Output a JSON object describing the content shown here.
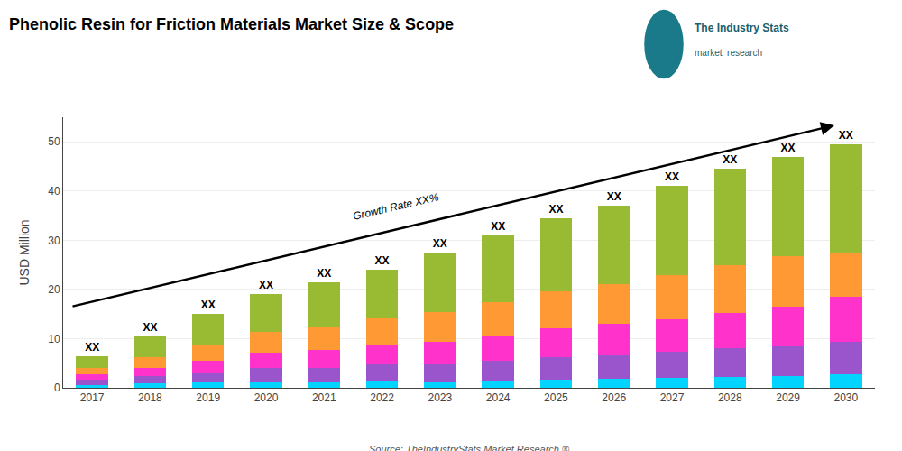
{
  "chart_data": {
    "type": "bar",
    "stacked": true,
    "title": "Phenolic Resin for Friction Materials Market Size & Scope",
    "ylabel": "USD Million",
    "categories": [
      "2017",
      "2018",
      "2019",
      "2020",
      "2021",
      "2022",
      "2023",
      "2024",
      "2025",
      "2026",
      "2027",
      "2028",
      "2029",
      "2030"
    ],
    "series": [
      {
        "color": "#00D4FF",
        "values": [
          0.585,
          0.945,
          1.05,
          1.33,
          1.29,
          1.44,
          1.375,
          1.55,
          1.725,
          1.85,
          2.05,
          2.225,
          2.35,
          2.7775
        ]
      },
      {
        "color": "#9B55CC",
        "values": [
          0.975,
          1.365,
          1.8,
          2.66,
          2.795,
          3.36,
          3.575,
          4.03,
          4.485,
          4.81,
          5.33,
          5.785,
          6.11,
          6.565
        ]
      },
      {
        "color": "#FF33CC",
        "values": [
          1.17,
          1.68,
          2.7,
          3.23,
          3.655,
          4.08,
          4.4,
          4.96,
          5.865,
          6.29,
          6.56,
          7.12,
          7.99,
          9.09
        ]
      },
      {
        "color": "#FF9933",
        "values": [
          1.3,
          2.31,
          3.3,
          4.18,
          4.73,
          5.28,
          6.05,
          6.82,
          7.59,
          8.14,
          9.02,
          9.79,
          10.34,
          8.8375
        ]
      },
      {
        "color": "#99BB33",
        "values": [
          2.47,
          4.2,
          6.15,
          7.6,
          9.03,
          9.84,
          12.1,
          13.64,
          14.835,
          15.91,
          18.04,
          19.58,
          20.21,
          22.22
        ]
      }
    ],
    "bar_labels": [
      "XX",
      "XX",
      "XX",
      "XX",
      "XX",
      "XX",
      "XX",
      "XX",
      "XX",
      "XX",
      "XX",
      "XX",
      "XX",
      "XX"
    ],
    "annotations": [
      "Source: TheIndustryStats Market Research ®",
      "Growth Rate XX%",
      "The Industry Stats",
      "market  research"
    ],
    "ylim": [
      0,
      55
    ],
    "yticks": [
      0,
      10,
      20,
      30,
      40,
      50
    ],
    "grid": true
  }
}
